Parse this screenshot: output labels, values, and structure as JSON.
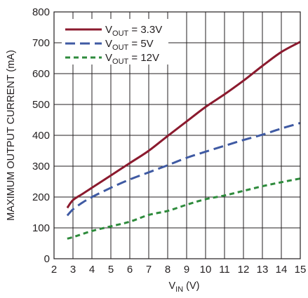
{
  "chart_data": {
    "type": "line",
    "xlabel": {
      "main": "V",
      "sub": "IN",
      "unit": " (V)"
    },
    "ylabel": "MAXIMUM OUTPUT CURRENT (mA)",
    "xlim": [
      2,
      15
    ],
    "ylim": [
      0,
      800
    ],
    "x_ticks": [
      "2",
      "3",
      "4",
      "5",
      "6",
      "7",
      "8",
      "9",
      "10",
      "11",
      "12",
      "13",
      "14",
      "15"
    ],
    "y_ticks": [
      "0",
      "100",
      "200",
      "300",
      "400",
      "500",
      "600",
      "700",
      "800"
    ],
    "grid": true,
    "legend_position": "top-left",
    "series": [
      {
        "name": {
          "main": "V",
          "sub": "OUT",
          "rest": " = 3.3V"
        },
        "color": "#8b1a2e",
        "dash": "solid",
        "x": [
          2.7,
          3.0,
          3.5,
          4,
          5,
          6,
          7,
          8,
          9,
          10,
          11,
          12,
          13,
          14,
          15
        ],
        "y": [
          165,
          190,
          210,
          230,
          270,
          310,
          350,
          398,
          445,
          492,
          533,
          577,
          625,
          670,
          703
        ]
      },
      {
        "name": {
          "main": "V",
          "sub": "OUT",
          "rest": " = 5V"
        },
        "color": "#3f5aa3",
        "dash": "long-dash",
        "x": [
          2.7,
          3.0,
          3.5,
          4,
          5,
          6,
          7,
          8,
          9,
          10,
          11,
          12,
          13,
          14,
          15
        ],
        "y": [
          140,
          160,
          182,
          200,
          230,
          257,
          280,
          303,
          327,
          347,
          366,
          385,
          402,
          422,
          440
        ]
      },
      {
        "name": {
          "main": "V",
          "sub": "OUT",
          "rest": " = 12V"
        },
        "color": "#2e8b3c",
        "dash": "short-dash",
        "x": [
          2.7,
          3.0,
          4,
          5,
          6,
          7,
          8,
          9,
          10,
          11,
          12,
          13,
          14,
          15
        ],
        "y": [
          65,
          70,
          90,
          105,
          120,
          142,
          155,
          175,
          193,
          205,
          220,
          235,
          248,
          260
        ]
      }
    ]
  }
}
